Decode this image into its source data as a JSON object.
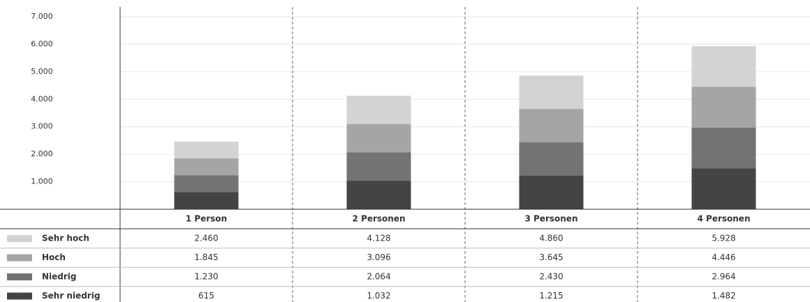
{
  "chart_data": {
    "type": "bar",
    "categories": [
      "1 Person",
      "2 Personen",
      "3 Personen",
      "4 Personen"
    ],
    "series": [
      {
        "name": "Sehr hoch",
        "color": "#d3d3d3",
        "values": [
          2460,
          4128,
          4860,
          5928
        ],
        "value_labels": [
          "2.460",
          "4.128",
          "4.860",
          "5.928"
        ]
      },
      {
        "name": "Hoch",
        "color": "#a5a5a5",
        "values": [
          1845,
          3096,
          3645,
          4446
        ],
        "value_labels": [
          "1.845",
          "3.096",
          "3.645",
          "4.446"
        ]
      },
      {
        "name": "Niedrig",
        "color": "#737373",
        "values": [
          1230,
          2064,
          2430,
          2964
        ],
        "value_labels": [
          "1.230",
          "2.064",
          "2.430",
          "2.964"
        ]
      },
      {
        "name": "Sehr niedrig",
        "color": "#444444",
        "values": [
          615,
          1032,
          1215,
          1482
        ],
        "value_labels": [
          "615",
          "1.032",
          "1.215",
          "1.482"
        ]
      }
    ],
    "ylim": [
      0,
      7000
    ],
    "yticks": [
      {
        "value": 1000,
        "label": "1.000"
      },
      {
        "value": 2000,
        "label": "2.000"
      },
      {
        "value": 3000,
        "label": "3.000"
      },
      {
        "value": 4000,
        "label": "4.000"
      },
      {
        "value": 5000,
        "label": "5.000"
      },
      {
        "value": 6000,
        "label": "6.000"
      },
      {
        "value": 7000,
        "label": "7.000"
      }
    ],
    "grid": true
  }
}
